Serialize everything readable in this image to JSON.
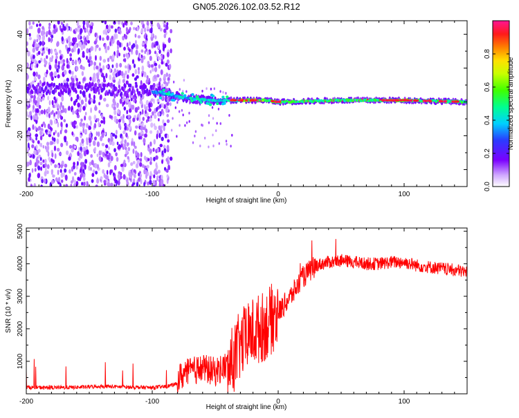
{
  "title": "GN05.2026.102.03.52.R12",
  "chart_data": [
    {
      "type": "heatmap",
      "title": "GN05.2026.102.03.52.R12",
      "xlabel": "Height of straight line (km)",
      "ylabel": "Frequency (Hz)",
      "xlim": [
        -200,
        150
      ],
      "ylim": [
        -50,
        48
      ],
      "xticks": [
        -200,
        -100,
        0,
        100
      ],
      "yticks": [
        -40,
        -20,
        0,
        20,
        40
      ],
      "colorbar": {
        "label": "Normalized spectral amplitude",
        "range": [
          0,
          1
        ],
        "ticks": [
          0.0,
          0.2,
          0.4,
          0.6,
          0.8
        ]
      },
      "description_points": {
        "noise_region_x_range": [
          -200,
          -85
        ],
        "ridge_frequency_hz": [
          [
            -150,
            8
          ],
          [
            -120,
            7
          ],
          [
            -100,
            6
          ],
          [
            -85,
            4
          ],
          [
            -70,
            2
          ],
          [
            -50,
            1
          ],
          [
            -30,
            1
          ],
          [
            -10,
            1
          ],
          [
            0,
            0
          ],
          [
            50,
            1
          ],
          [
            100,
            1
          ],
          [
            150,
            0
          ]
        ]
      }
    },
    {
      "type": "line",
      "xlabel": "Height of straight line (km)",
      "ylabel": "SNR (10 * v/v)",
      "xlim": [
        -200,
        150
      ],
      "ylim": [
        0,
        5100
      ],
      "xticks": [
        -200,
        -100,
        0,
        100
      ],
      "yticks": [
        1000,
        2000,
        3000,
        4000,
        5000
      ],
      "series": [
        {
          "name": "SNR",
          "color": "#ff0000",
          "x": [
            -200,
            -180,
            -160,
            -140,
            -120,
            -100,
            -90,
            -80,
            -70,
            -60,
            -50,
            -40,
            -30,
            -20,
            -10,
            0,
            10,
            20,
            30,
            40,
            50,
            60,
            70,
            80,
            90,
            100,
            110,
            120,
            130,
            140,
            150
          ],
          "y": [
            200,
            190,
            200,
            230,
            210,
            190,
            220,
            300,
            500,
            600,
            500,
            700,
            1500,
            1900,
            2100,
            2500,
            3000,
            3600,
            3950,
            4050,
            4100,
            4050,
            4000,
            4000,
            4050,
            4050,
            3950,
            3900,
            3850,
            3800,
            3750
          ]
        }
      ]
    }
  ]
}
